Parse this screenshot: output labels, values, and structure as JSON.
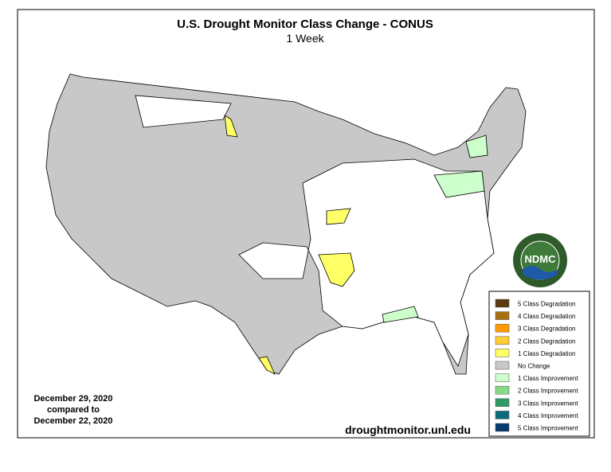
{
  "header": {
    "title": "U.S. Drought Monitor Class Change - CONUS",
    "subtitle": "1 Week"
  },
  "legend": {
    "items": [
      {
        "label": "5 Class Degradation",
        "color": "#5b3a12"
      },
      {
        "label": "4 Class Degradation",
        "color": "#a8700f"
      },
      {
        "label": "3 Class Degradation",
        "color": "#ff9a00"
      },
      {
        "label": "2 Class Degradation",
        "color": "#ffcc33"
      },
      {
        "label": "1 Class Degradation",
        "color": "#ffff66"
      },
      {
        "label": "No Change",
        "color": "#c8c8c8"
      },
      {
        "label": "1 Class Improvement",
        "color": "#ccffcc"
      },
      {
        "label": "2 Class Improvement",
        "color": "#88d888"
      },
      {
        "label": "3 Class Improvement",
        "color": "#2f9a66"
      },
      {
        "label": "4 Class Improvement",
        "color": "#0b6b78"
      },
      {
        "label": "5 Class Improvement",
        "color": "#063b6e"
      }
    ]
  },
  "dates": {
    "line1": "December 29, 2020",
    "line2": "compared to",
    "line3": "December 22, 2020"
  },
  "footer": {
    "url": "droughtmonitor.unl.edu"
  },
  "logo": {
    "text": "NDMC"
  }
}
